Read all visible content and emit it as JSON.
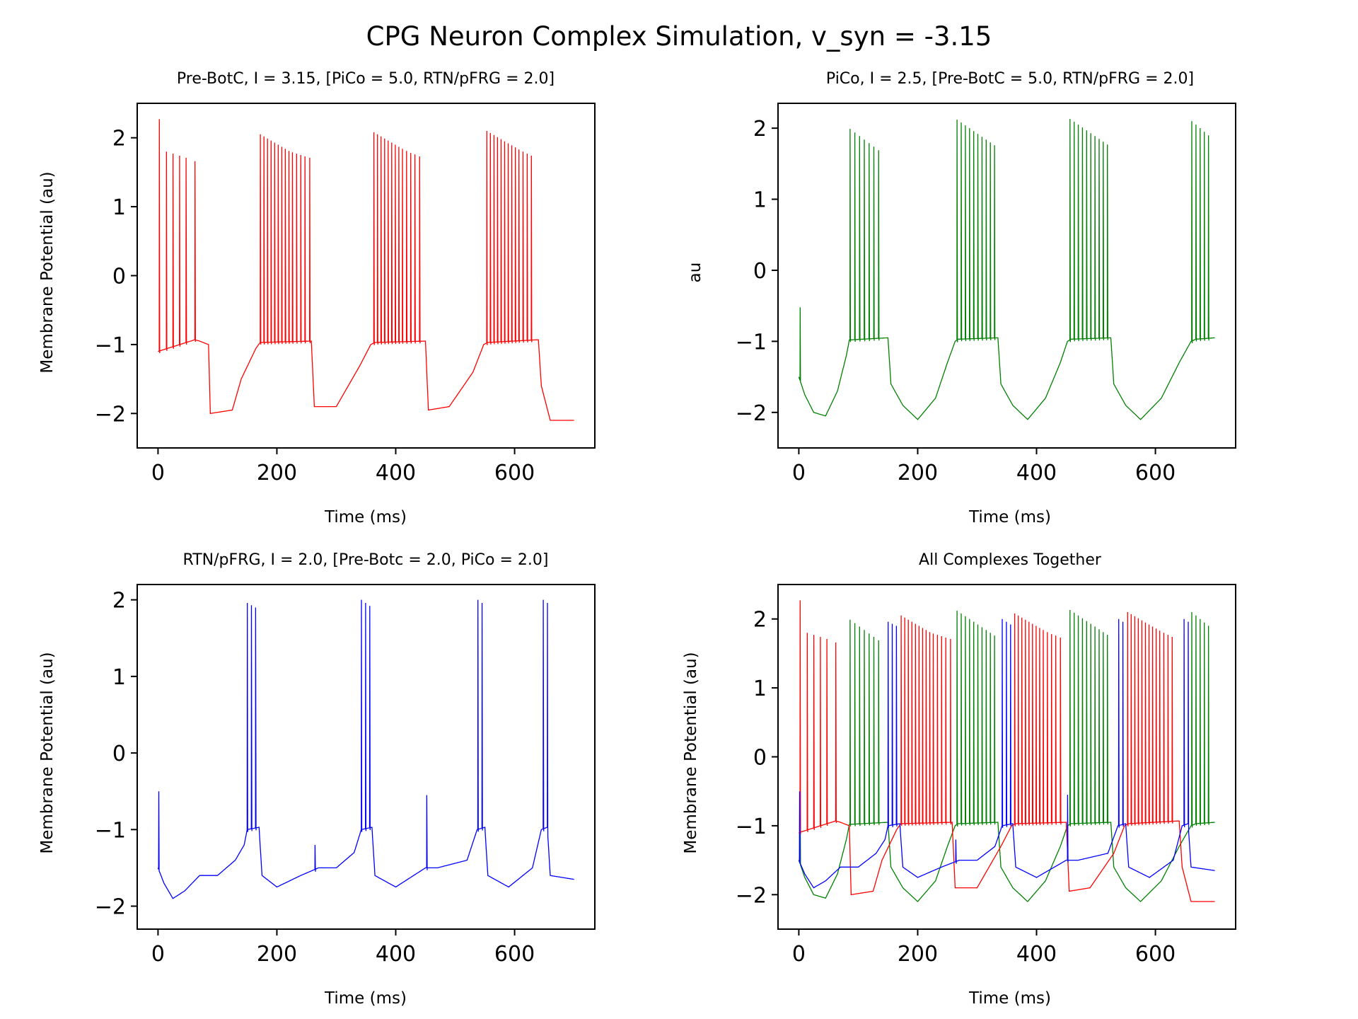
{
  "figure": {
    "title": "CPG Neuron Complex Simulation, v_syn = -3.15"
  },
  "colors": {
    "pre_botc": "#ff0000",
    "pico": "#008000",
    "rtn_pfrg": "#0000ff",
    "axes": "#000000"
  },
  "chart_data": [
    {
      "type": "line",
      "title": "Pre-BotC, I = 3.15, [PiCo = 5.0, RTN/pFRG = 2.0]",
      "xlabel": "Time (ms)",
      "ylabel": "Membrane Potential (au)",
      "xlim": [
        -35,
        735
      ],
      "ylim": [
        -2.5,
        2.5
      ],
      "xticks": [
        0,
        200,
        400,
        600
      ],
      "yticks": [
        2,
        1,
        0,
        -1,
        -2
      ],
      "xtick_labels": [
        "0",
        "200",
        "400",
        "600"
      ],
      "ytick_labels": [
        "2",
        "1",
        "0",
        "−1",
        "−2"
      ],
      "series": [
        {
          "color": "#ff0000",
          "baseline": [
            [
              0,
              -1.1
            ],
            [
              62,
              -0.93
            ],
            [
              70,
              -0.95
            ],
            [
              85,
              -1.0
            ],
            [
              88,
              -2.0
            ],
            [
              125,
              -1.95
            ],
            [
              140,
              -1.5
            ],
            [
              165,
              -1.05
            ],
            [
              172,
              -0.97
            ],
            [
              258,
              -0.95
            ],
            [
              263,
              -1.9
            ],
            [
              300,
              -1.9
            ],
            [
              340,
              -1.3
            ],
            [
              358,
              -1.0
            ],
            [
              365,
              -0.97
            ],
            [
              450,
              -0.95
            ],
            [
              455,
              -1.95
            ],
            [
              490,
              -1.9
            ],
            [
              530,
              -1.4
            ],
            [
              548,
              -1.0
            ],
            [
              555,
              -0.97
            ],
            [
              640,
              -0.93
            ],
            [
              645,
              -1.6
            ],
            [
              660,
              -2.1
            ],
            [
              700,
              -2.1
            ]
          ],
          "spikes": [
            {
              "t": 2,
              "v": 2.27
            },
            {
              "t": 14,
              "v": 1.8
            },
            {
              "t": 25,
              "v": 1.77
            },
            {
              "t": 36,
              "v": 1.74
            },
            {
              "t": 47,
              "v": 1.71
            },
            {
              "t": 62,
              "v": 1.66
            },
            {
              "t": 172,
              "v": 2.05
            },
            {
              "t": 178,
              "v": 2.02
            },
            {
              "t": 184,
              "v": 1.99
            },
            {
              "t": 190,
              "v": 1.96
            },
            {
              "t": 196,
              "v": 1.93
            },
            {
              "t": 202,
              "v": 1.9
            },
            {
              "t": 208,
              "v": 1.87
            },
            {
              "t": 214,
              "v": 1.84
            },
            {
              "t": 220,
              "v": 1.81
            },
            {
              "t": 226,
              "v": 1.79
            },
            {
              "t": 233,
              "v": 1.77
            },
            {
              "t": 240,
              "v": 1.75
            },
            {
              "t": 247,
              "v": 1.73
            },
            {
              "t": 255,
              "v": 1.71
            },
            {
              "t": 363,
              "v": 2.08
            },
            {
              "t": 369,
              "v": 2.05
            },
            {
              "t": 375,
              "v": 2.02
            },
            {
              "t": 381,
              "v": 1.99
            },
            {
              "t": 387,
              "v": 1.96
            },
            {
              "t": 393,
              "v": 1.93
            },
            {
              "t": 399,
              "v": 1.9
            },
            {
              "t": 405,
              "v": 1.87
            },
            {
              "t": 411,
              "v": 1.84
            },
            {
              "t": 418,
              "v": 1.81
            },
            {
              "t": 425,
              "v": 1.78
            },
            {
              "t": 432,
              "v": 1.76
            },
            {
              "t": 440,
              "v": 1.73
            },
            {
              "t": 553,
              "v": 2.1
            },
            {
              "t": 559,
              "v": 2.07
            },
            {
              "t": 565,
              "v": 2.04
            },
            {
              "t": 571,
              "v": 2.01
            },
            {
              "t": 577,
              "v": 1.98
            },
            {
              "t": 583,
              "v": 1.95
            },
            {
              "t": 589,
              "v": 1.92
            },
            {
              "t": 595,
              "v": 1.89
            },
            {
              "t": 601,
              "v": 1.86
            },
            {
              "t": 607,
              "v": 1.83
            },
            {
              "t": 614,
              "v": 1.8
            },
            {
              "t": 621,
              "v": 1.77
            },
            {
              "t": 628,
              "v": 1.74
            }
          ]
        }
      ]
    },
    {
      "type": "line",
      "title": "PiCo, I = 2.5, [Pre-BotC = 5.0, RTN/pFRG = 2.0]",
      "xlabel": "Time (ms)",
      "ylabel": "au",
      "xlim": [
        -35,
        735
      ],
      "ylim": [
        -2.5,
        2.35
      ],
      "xticks": [
        0,
        200,
        400,
        600
      ],
      "yticks": [
        2,
        1,
        0,
        -1,
        -2
      ],
      "xtick_labels": [
        "0",
        "200",
        "400",
        "600"
      ],
      "ytick_labels": [
        "2",
        "1",
        "0",
        "−1",
        "−2"
      ],
      "series": [
        {
          "color": "#008000",
          "baseline": [
            [
              0,
              -1.5
            ],
            [
              10,
              -1.75
            ],
            [
              25,
              -2.0
            ],
            [
              45,
              -2.05
            ],
            [
              65,
              -1.7
            ],
            [
              80,
              -1.2
            ],
            [
              85,
              -0.98
            ],
            [
              150,
              -0.95
            ],
            [
              155,
              -1.6
            ],
            [
              175,
              -1.9
            ],
            [
              200,
              -2.1
            ],
            [
              230,
              -1.8
            ],
            [
              250,
              -1.3
            ],
            [
              263,
              -1.0
            ],
            [
              268,
              -0.97
            ],
            [
              335,
              -0.95
            ],
            [
              340,
              -1.6
            ],
            [
              360,
              -1.9
            ],
            [
              385,
              -2.1
            ],
            [
              415,
              -1.8
            ],
            [
              440,
              -1.3
            ],
            [
              452,
              -1.0
            ],
            [
              458,
              -0.97
            ],
            [
              525,
              -0.95
            ],
            [
              530,
              -1.6
            ],
            [
              550,
              -1.9
            ],
            [
              575,
              -2.1
            ],
            [
              610,
              -1.8
            ],
            [
              640,
              -1.3
            ],
            [
              660,
              -1.0
            ],
            [
              668,
              -0.97
            ],
            [
              700,
              -0.95
            ]
          ],
          "spikes": [
            {
              "t": 2,
              "v": -0.52
            },
            {
              "t": 86,
              "v": 1.99
            },
            {
              "t": 94,
              "v": 1.94
            },
            {
              "t": 102,
              "v": 1.89
            },
            {
              "t": 110,
              "v": 1.84
            },
            {
              "t": 118,
              "v": 1.79
            },
            {
              "t": 126,
              "v": 1.74
            },
            {
              "t": 134,
              "v": 1.69
            },
            {
              "t": 266,
              "v": 2.12
            },
            {
              "t": 273,
              "v": 2.08
            },
            {
              "t": 280,
              "v": 2.04
            },
            {
              "t": 287,
              "v": 2.0
            },
            {
              "t": 294,
              "v": 1.96
            },
            {
              "t": 301,
              "v": 1.92
            },
            {
              "t": 308,
              "v": 1.88
            },
            {
              "t": 315,
              "v": 1.84
            },
            {
              "t": 322,
              "v": 1.8
            },
            {
              "t": 329,
              "v": 1.76
            },
            {
              "t": 456,
              "v": 2.13
            },
            {
              "t": 463,
              "v": 2.09
            },
            {
              "t": 470,
              "v": 2.05
            },
            {
              "t": 477,
              "v": 2.01
            },
            {
              "t": 484,
              "v": 1.97
            },
            {
              "t": 491,
              "v": 1.93
            },
            {
              "t": 498,
              "v": 1.89
            },
            {
              "t": 505,
              "v": 1.85
            },
            {
              "t": 512,
              "v": 1.81
            },
            {
              "t": 519,
              "v": 1.77
            },
            {
              "t": 661,
              "v": 2.1
            },
            {
              "t": 668,
              "v": 2.05
            },
            {
              "t": 675,
              "v": 2.0
            },
            {
              "t": 682,
              "v": 1.95
            },
            {
              "t": 689,
              "v": 1.9
            }
          ]
        }
      ]
    },
    {
      "type": "line",
      "title": "RTN/pFRG, I = 2.0, [Pre-Botc = 2.0, PiCo = 2.0]",
      "xlabel": "Time (ms)",
      "ylabel": "Membrane Potential (au)",
      "xlim": [
        -35,
        735
      ],
      "ylim": [
        -2.3,
        2.2
      ],
      "xticks": [
        0,
        200,
        400,
        600
      ],
      "yticks": [
        2,
        1,
        0,
        -1,
        -2
      ],
      "xtick_labels": [
        "0",
        "200",
        "400",
        "600"
      ],
      "ytick_labels": [
        "2",
        "1",
        "0",
        "−1",
        "−2"
      ],
      "series": [
        {
          "color": "#0000ff",
          "baseline": [
            [
              0,
              -1.5
            ],
            [
              10,
              -1.7
            ],
            [
              25,
              -1.9
            ],
            [
              45,
              -1.8
            ],
            [
              70,
              -1.6
            ],
            [
              100,
              -1.6
            ],
            [
              130,
              -1.4
            ],
            [
              145,
              -1.2
            ],
            [
              150,
              -1.0
            ],
            [
              170,
              -0.97
            ],
            [
              175,
              -1.6
            ],
            [
              200,
              -1.75
            ],
            [
              240,
              -1.6
            ],
            [
              270,
              -1.5
            ],
            [
              300,
              -1.5
            ],
            [
              330,
              -1.3
            ],
            [
              342,
              -1.0
            ],
            [
              360,
              -0.97
            ],
            [
              365,
              -1.6
            ],
            [
              400,
              -1.75
            ],
            [
              450,
              -1.5
            ],
            [
              470,
              -1.5
            ],
            [
              520,
              -1.4
            ],
            [
              537,
              -1.0
            ],
            [
              550,
              -0.97
            ],
            [
              555,
              -1.6
            ],
            [
              590,
              -1.75
            ],
            [
              630,
              -1.5
            ],
            [
              645,
              -1.0
            ],
            [
              655,
              -0.97
            ],
            [
              660,
              -1.6
            ],
            [
              700,
              -1.65
            ]
          ],
          "spikes": [
            {
              "t": 1,
              "v": -0.5
            },
            {
              "t": 150,
              "v": 1.96
            },
            {
              "t": 157,
              "v": 1.93
            },
            {
              "t": 164,
              "v": 1.9
            },
            {
              "t": 264,
              "v": -1.2
            },
            {
              "t": 342,
              "v": 2.0
            },
            {
              "t": 349,
              "v": 1.96
            },
            {
              "t": 356,
              "v": 1.92
            },
            {
              "t": 452,
              "v": -0.55
            },
            {
              "t": 538,
              "v": 2.0
            },
            {
              "t": 545,
              "v": 1.96
            },
            {
              "t": 648,
              "v": 2.0
            },
            {
              "t": 655,
              "v": 1.96
            }
          ]
        }
      ]
    },
    {
      "type": "line",
      "title": "All Complexes Together",
      "xlabel": "Time (ms)",
      "ylabel": "Membrane Potential (au)",
      "xlim": [
        -35,
        735
      ],
      "ylim": [
        -2.5,
        2.5
      ],
      "xticks": [
        0,
        200,
        400,
        600
      ],
      "yticks": [
        2,
        1,
        0,
        -1,
        -2
      ],
      "xtick_labels": [
        "0",
        "200",
        "400",
        "600"
      ],
      "ytick_labels": [
        "2",
        "1",
        "0",
        "−1",
        "−2"
      ],
      "overlay_of": [
        "Pre-BotC",
        "PiCo",
        "RTN/pFRG"
      ]
    }
  ]
}
